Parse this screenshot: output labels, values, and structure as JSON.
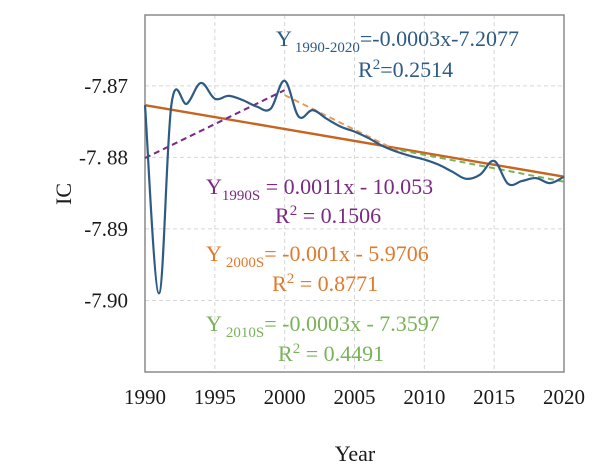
{
  "chart_data": {
    "type": "line",
    "title": "",
    "xlabel": "Year",
    "ylabel": "IC",
    "xlim": [
      1990,
      2020
    ],
    "ylim": [
      -7.91,
      -7.8601
    ],
    "grid": true,
    "x_ticks": [
      1990,
      1995,
      2000,
      2005,
      2010,
      2015,
      2020
    ],
    "x_tick_labels": [
      "1990",
      "1995",
      "2000",
      "2005",
      "2010",
      "2015",
      "2020"
    ],
    "y_ticks": [
      -7.87,
      -7.88,
      -7.89,
      -7.9
    ],
    "y_tick_labels": [
      "-7.87",
      "-7. 88",
      "-7.89",
      "-7.90"
    ],
    "series": [
      {
        "name": "IC",
        "style": "smooth-line",
        "color": "#2e5b86",
        "x": [
          1990,
          1991,
          1991.9,
          1993,
          1994,
          1995,
          1996,
          1997,
          1998,
          1999,
          2000,
          2001,
          2002,
          2003,
          2004,
          2005,
          2006,
          2007,
          2008,
          2009,
          2010,
          2011,
          2012,
          2013,
          2014,
          2015,
          2016,
          2017,
          2018,
          2019,
          2020
        ],
        "y": [
          -7.8727,
          -7.899,
          -7.8725,
          -7.8725,
          -7.8696,
          -7.8718,
          -7.8714,
          -7.872,
          -7.8729,
          -7.8732,
          -7.8693,
          -7.8743,
          -7.8734,
          -7.8746,
          -7.8757,
          -7.8764,
          -7.8773,
          -7.8784,
          -7.8792,
          -7.8798,
          -7.8803,
          -7.881,
          -7.882,
          -7.883,
          -7.8824,
          -7.8805,
          -7.8837,
          -7.8833,
          -7.8829,
          -7.8836,
          -7.8827
        ]
      }
    ],
    "trendlines": [
      {
        "name": "trend-1990-2020",
        "color": "#c5651f",
        "dash": false,
        "x": [
          1990,
          2020
        ],
        "y": [
          -7.8727,
          -7.8827
        ]
      },
      {
        "name": "trend-1990s",
        "color": "#7b2a84",
        "dash": true,
        "x": [
          1990,
          2000
        ],
        "y": [
          -7.8801,
          -7.8706
        ]
      },
      {
        "name": "trend-2000s",
        "color": "#e79a5a",
        "dash": true,
        "x": [
          2000,
          2008.5
        ],
        "y": [
          -7.8713,
          -7.8795
        ]
      },
      {
        "name": "trend-2010s",
        "color": "#7ab25a",
        "dash": true,
        "x": [
          2008.3,
          2020
        ],
        "y": [
          -7.879,
          -7.8834
        ]
      }
    ],
    "annotations": [
      {
        "id": "all",
        "color": "#2e5b86",
        "y_main": "Y",
        "y_sub": "1990-2020",
        "equation": "=-0.0003x-7.2077",
        "r2_label": "R",
        "r2_sup": "2",
        "r2_value": "=0.2514"
      },
      {
        "id": "s1990",
        "color": "#7b2a84",
        "y_main": "Y",
        "y_sub": "1990S",
        "equation": " = 0.0011x - 10.053",
        "r2_label": "R",
        "r2_sup": "2",
        "r2_value": " = 0.1506"
      },
      {
        "id": "s2000",
        "color": "#e07a2e",
        "y_main": "Y",
        "y_sub": "2000S",
        "equation": "= -0.001x - 5.9706",
        "r2_label": "R",
        "r2_sup": "2",
        "r2_value": " = 0.8771"
      },
      {
        "id": "s2010",
        "color": "#7ab25a",
        "y_main": "Y",
        "y_sub": "2010S",
        "equation": "= -0.0003x - 7.3597",
        "r2_label": "R",
        "r2_sup": "2",
        "r2_value": " = 0.4491"
      }
    ]
  }
}
